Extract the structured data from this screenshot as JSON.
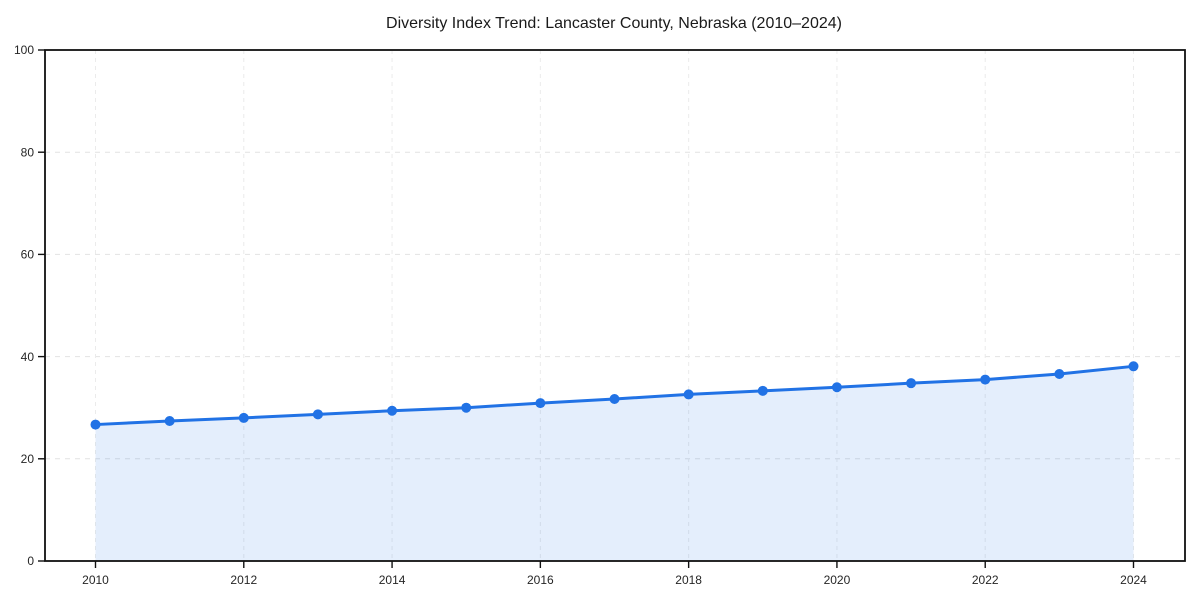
{
  "chart_data": {
    "type": "area",
    "title": "Diversity Index Trend: Lancaster County, Nebraska (2010–2024)",
    "xlabel": "",
    "ylabel": "",
    "x": [
      2010,
      2011,
      2012,
      2013,
      2014,
      2015,
      2016,
      2017,
      2018,
      2019,
      2020,
      2021,
      2022,
      2023,
      2024
    ],
    "series": [
      {
        "name": "Diversity Index",
        "values": [
          26.7,
          27.4,
          28.0,
          28.7,
          29.4,
          30.0,
          30.9,
          31.7,
          32.6,
          33.3,
          34.0,
          34.8,
          35.5,
          36.6,
          38.1
        ]
      }
    ],
    "xticks": [
      2010,
      2012,
      2014,
      2016,
      2018,
      2020,
      2022,
      2024
    ],
    "yticks": [
      0,
      20,
      40,
      60,
      80,
      100
    ],
    "ylim": [
      0,
      100
    ],
    "grid": "dashed",
    "legend": "none",
    "marker": "circle",
    "colors": {
      "line": "#2172e5",
      "marker": "#2172e5",
      "fill": "#2172e5",
      "fill_opacity": "0.12",
      "grid_h": "#e2e2e2",
      "grid_v": "#ebebeb",
      "axis": "#111111",
      "title": "#1a1a1a",
      "tick_label": "#262626",
      "background": "#ffffff"
    }
  }
}
